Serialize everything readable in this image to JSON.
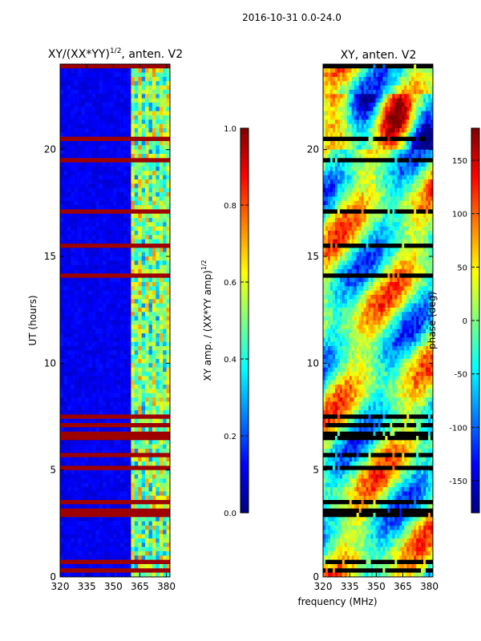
{
  "figure_title": "2016-10-31 0.0-24.0",
  "colors": {
    "jet": [
      "#00007f",
      "#0000ff",
      "#007fff",
      "#00ffff",
      "#7fff7f",
      "#ffff00",
      "#ff7f00",
      "#ff0000",
      "#7f0000"
    ],
    "axes": "#000000",
    "background": "#ffffff"
  },
  "chart_data": [
    {
      "type": "heatmap",
      "title": "XY/(XX*YY)",
      "title_superscript": "1/2",
      "title_suffix": ", anten. V2",
      "xlabel": "",
      "ylabel": "UT (hours)",
      "xlim": [
        320,
        382
      ],
      "ylim": [
        0,
        24
      ],
      "xticks": [
        "320",
        "335",
        "350",
        "365",
        "380"
      ],
      "yticks": [
        "0",
        "5",
        "10",
        "15",
        "20"
      ],
      "colorbar": {
        "label": "XY amp. / (XX*YY amp)",
        "label_superscript": "1/2",
        "range": [
          0.0,
          1.0
        ],
        "ticks": [
          "0.0",
          "0.2",
          "0.4",
          "0.6",
          "0.8",
          "1.0"
        ]
      },
      "description": "Mostly low amplitude (~0.05) below 360 MHz; bright band 360-378 MHz; many horizontal flagged rows at value 1.0"
    },
    {
      "type": "heatmap",
      "title": "XY, anten. V2",
      "xlabel": "frequency (MHz)",
      "ylabel": "",
      "xlim": [
        320,
        382
      ],
      "ylim": [
        0,
        24
      ],
      "xticks": [
        "320",
        "335",
        "350",
        "365",
        "380"
      ],
      "yticks": [
        "0",
        "5",
        "10",
        "15",
        "20"
      ],
      "colorbar": {
        "label": "phase (deg)",
        "range": [
          -180,
          180
        ],
        "ticks": [
          "-150",
          "-100",
          "-50",
          "0",
          "50",
          "100",
          "150"
        ]
      },
      "description": "Phase varies smoothly across frequency and time with wrap-around stripes; black horizontal flagged rows"
    }
  ]
}
